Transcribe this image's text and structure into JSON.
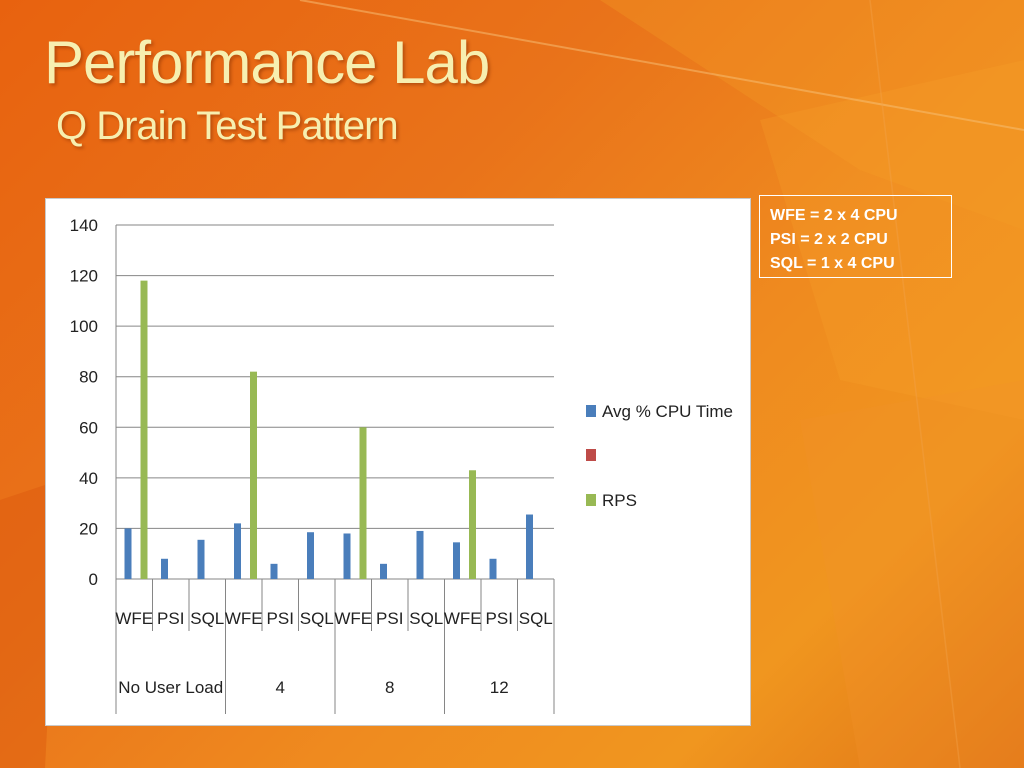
{
  "slide": {
    "title": "Performance Lab",
    "subtitle": "Q Drain Test Pattern",
    "note_lines": [
      "WFE = 2 x 4 CPU",
      "PSI = 2 x 2 CPU",
      "SQL = 1 x 4 CPU"
    ]
  },
  "colors": {
    "avg_cpu": "#4a7ebb",
    "series2": "#be4b48",
    "rps": "#98b954",
    "grid": "#868686"
  },
  "chart_data": {
    "type": "bar",
    "groups": [
      "No User Load",
      "4",
      "8",
      "12"
    ],
    "categories": [
      "WFE",
      "PSI",
      "SQL",
      "WFE",
      "PSI",
      "SQL",
      "WFE",
      "PSI",
      "SQL",
      "WFE",
      "PSI",
      "SQL"
    ],
    "series": [
      {
        "name": "Avg % CPU Time",
        "values": [
          20,
          8,
          15.5,
          22,
          6,
          18.5,
          18,
          6,
          19,
          14.5,
          8,
          25.5
        ]
      },
      {
        "name": "",
        "values": [
          null,
          null,
          null,
          null,
          null,
          null,
          null,
          null,
          null,
          null,
          null,
          null
        ]
      },
      {
        "name": "RPS",
        "values": [
          118,
          null,
          null,
          82,
          null,
          null,
          60,
          null,
          null,
          43,
          null,
          null
        ]
      }
    ],
    "yticks": [
      0,
      20,
      40,
      60,
      80,
      100,
      120,
      140
    ],
    "ylim": [
      0,
      140
    ],
    "grid": true,
    "legend_position": "right"
  }
}
